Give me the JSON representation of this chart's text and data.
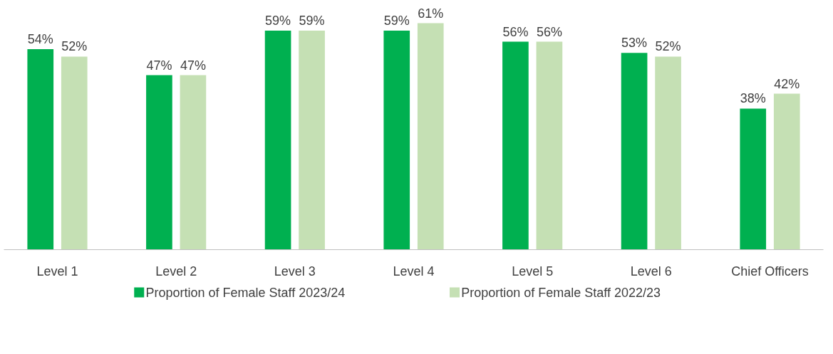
{
  "chart_data": {
    "type": "bar",
    "categories": [
      "Level 1",
      "Level 2",
      "Level 3",
      "Level 4",
      "Level 5",
      "Level 6",
      "Chief Officers"
    ],
    "series": [
      {
        "name": "Proportion of Female Staff 2023/24",
        "color": "#00b050",
        "values": [
          54,
          47,
          59,
          59,
          56,
          53,
          38
        ],
        "value_labels": [
          "54%",
          "47%",
          "59%",
          "59%",
          "56%",
          "53%",
          "38%"
        ]
      },
      {
        "name": "Proportion of Female Staff 2022/23",
        "color": "#c5e0b4",
        "values": [
          52,
          47,
          59,
          61,
          56,
          52,
          42
        ],
        "value_labels": [
          "52%",
          "47%",
          "59%",
          "61%",
          "56%",
          "52%",
          "42%"
        ]
      }
    ],
    "tick_labels": "x",
    "grid": false,
    "legend": "bottom"
  }
}
